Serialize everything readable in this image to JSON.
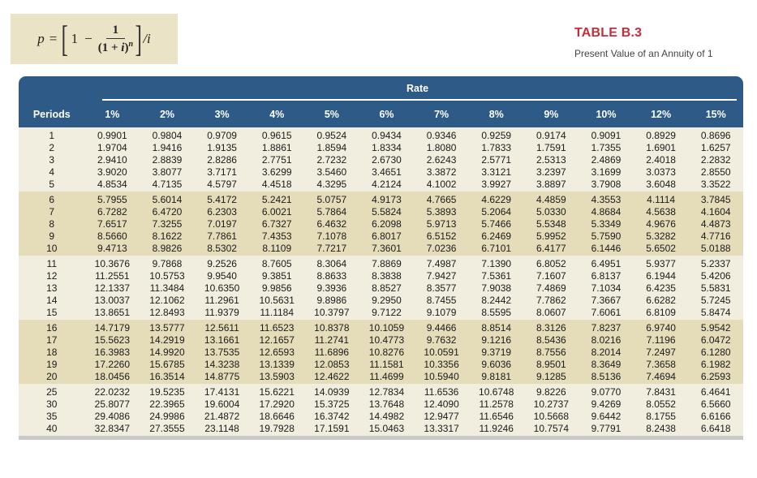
{
  "formula": {
    "lhs": "p",
    "eq": "=",
    "one": "1",
    "minus": "−",
    "numerator": "1",
    "denominator_base": "(1 + ",
    "denominator_var": "i",
    "denominator_close": ")",
    "denominator_exp": "n",
    "divisor": "/i"
  },
  "title": "TABLE B.3",
  "subtitle": "Present Value of an Annuity of 1",
  "header": {
    "group_label": "Rate",
    "periods_label": "Periods",
    "rates": [
      "1%",
      "2%",
      "3%",
      "4%",
      "5%",
      "6%",
      "7%",
      "8%",
      "9%",
      "10%",
      "12%",
      "15%"
    ]
  },
  "bands": [
    {
      "alt": false,
      "rows": [
        {
          "period": "1",
          "values": [
            "0.9901",
            "0.9804",
            "0.9709",
            "0.9615",
            "0.9524",
            "0.9434",
            "0.9346",
            "0.9259",
            "0.9174",
            "0.9091",
            "0.8929",
            "0.8696"
          ]
        },
        {
          "period": "2",
          "values": [
            "1.9704",
            "1.9416",
            "1.9135",
            "1.8861",
            "1.8594",
            "1.8334",
            "1.8080",
            "1.7833",
            "1.7591",
            "1.7355",
            "1.6901",
            "1.6257"
          ]
        },
        {
          "period": "3",
          "values": [
            "2.9410",
            "2.8839",
            "2.8286",
            "2.7751",
            "2.7232",
            "2.6730",
            "2.6243",
            "2.5771",
            "2.5313",
            "2.4869",
            "2.4018",
            "2.2832"
          ]
        },
        {
          "period": "4",
          "values": [
            "3.9020",
            "3.8077",
            "3.7171",
            "3.6299",
            "3.5460",
            "3.4651",
            "3.3872",
            "3.3121",
            "3.2397",
            "3.1699",
            "3.0373",
            "2.8550"
          ]
        },
        {
          "period": "5",
          "values": [
            "4.8534",
            "4.7135",
            "4.5797",
            "4.4518",
            "4.3295",
            "4.2124",
            "4.1002",
            "3.9927",
            "3.8897",
            "3.7908",
            "3.6048",
            "3.3522"
          ]
        }
      ]
    },
    {
      "alt": true,
      "rows": [
        {
          "period": "6",
          "values": [
            "5.7955",
            "5.6014",
            "5.4172",
            "5.2421",
            "5.0757",
            "4.9173",
            "4.7665",
            "4.6229",
            "4.4859",
            "4.3553",
            "4.1114",
            "3.7845"
          ]
        },
        {
          "period": "7",
          "values": [
            "6.7282",
            "6.4720",
            "6.2303",
            "6.0021",
            "5.7864",
            "5.5824",
            "5.3893",
            "5.2064",
            "5.0330",
            "4.8684",
            "4.5638",
            "4.1604"
          ]
        },
        {
          "period": "8",
          "values": [
            "7.6517",
            "7.3255",
            "7.0197",
            "6.7327",
            "6.4632",
            "6.2098",
            "5.9713",
            "5.7466",
            "5.5348",
            "5.3349",
            "4.9676",
            "4.4873"
          ]
        },
        {
          "period": "9",
          "values": [
            "8.5660",
            "8.1622",
            "7.7861",
            "7.4353",
            "7.1078",
            "6.8017",
            "6.5152",
            "6.2469",
            "5.9952",
            "5.7590",
            "5.3282",
            "4.7716"
          ]
        },
        {
          "period": "10",
          "values": [
            "9.4713",
            "8.9826",
            "8.5302",
            "8.1109",
            "7.7217",
            "7.3601",
            "7.0236",
            "6.7101",
            "6.4177",
            "6.1446",
            "5.6502",
            "5.0188"
          ]
        }
      ]
    },
    {
      "alt": false,
      "rows": [
        {
          "period": "11",
          "values": [
            "10.3676",
            "9.7868",
            "9.2526",
            "8.7605",
            "8.3064",
            "7.8869",
            "7.4987",
            "7.1390",
            "6.8052",
            "6.4951",
            "5.9377",
            "5.2337"
          ]
        },
        {
          "period": "12",
          "values": [
            "11.2551",
            "10.5753",
            "9.9540",
            "9.3851",
            "8.8633",
            "8.3838",
            "7.9427",
            "7.5361",
            "7.1607",
            "6.8137",
            "6.1944",
            "5.4206"
          ]
        },
        {
          "period": "13",
          "values": [
            "12.1337",
            "11.3484",
            "10.6350",
            "9.9856",
            "9.3936",
            "8.8527",
            "8.3577",
            "7.9038",
            "7.4869",
            "7.1034",
            "6.4235",
            "5.5831"
          ]
        },
        {
          "period": "14",
          "values": [
            "13.0037",
            "12.1062",
            "11.2961",
            "10.5631",
            "9.8986",
            "9.2950",
            "8.7455",
            "8.2442",
            "7.7862",
            "7.3667",
            "6.6282",
            "5.7245"
          ]
        },
        {
          "period": "15",
          "values": [
            "13.8651",
            "12.8493",
            "11.9379",
            "11.1184",
            "10.3797",
            "9.7122",
            "9.1079",
            "8.5595",
            "8.0607",
            "7.6061",
            "6.8109",
            "5.8474"
          ]
        }
      ]
    },
    {
      "alt": true,
      "rows": [
        {
          "period": "16",
          "values": [
            "14.7179",
            "13.5777",
            "12.5611",
            "11.6523",
            "10.8378",
            "10.1059",
            "9.4466",
            "8.8514",
            "8.3126",
            "7.8237",
            "6.9740",
            "5.9542"
          ]
        },
        {
          "period": "17",
          "values": [
            "15.5623",
            "14.2919",
            "13.1661",
            "12.1657",
            "11.2741",
            "10.4773",
            "9.7632",
            "9.1216",
            "8.5436",
            "8.0216",
            "7.1196",
            "6.0472"
          ]
        },
        {
          "period": "18",
          "values": [
            "16.3983",
            "14.9920",
            "13.7535",
            "12.6593",
            "11.6896",
            "10.8276",
            "10.0591",
            "9.3719",
            "8.7556",
            "8.2014",
            "7.2497",
            "6.1280"
          ]
        },
        {
          "period": "19",
          "values": [
            "17.2260",
            "15.6785",
            "14.3238",
            "13.1339",
            "12.0853",
            "11.1581",
            "10.3356",
            "9.6036",
            "8.9501",
            "8.3649",
            "7.3658",
            "6.1982"
          ]
        },
        {
          "period": "20",
          "values": [
            "18.0456",
            "16.3514",
            "14.8775",
            "13.5903",
            "12.4622",
            "11.4699",
            "10.5940",
            "9.8181",
            "9.1285",
            "8.5136",
            "7.4694",
            "6.2593"
          ]
        }
      ]
    },
    {
      "alt": false,
      "rows": [
        {
          "period": "25",
          "values": [
            "22.0232",
            "19.5235",
            "17.4131",
            "15.6221",
            "14.0939",
            "12.7834",
            "11.6536",
            "10.6748",
            "9.8226",
            "9.0770",
            "7.8431",
            "6.4641"
          ]
        },
        {
          "period": "30",
          "values": [
            "25.8077",
            "22.3965",
            "19.6004",
            "17.2920",
            "15.3725",
            "13.7648",
            "12.4090",
            "11.2578",
            "10.2737",
            "9.4269",
            "8.0552",
            "6.5660"
          ]
        },
        {
          "period": "35",
          "values": [
            "29.4086",
            "24.9986",
            "21.4872",
            "18.6646",
            "16.3742",
            "14.4982",
            "12.9477",
            "11.6546",
            "10.5668",
            "9.6442",
            "8.1755",
            "6.6166"
          ]
        },
        {
          "period": "40",
          "values": [
            "32.8347",
            "27.3555",
            "23.1148",
            "19.7928",
            "17.1591",
            "15.0463",
            "13.3317",
            "11.9246",
            "10.7574",
            "9.7791",
            "8.2438",
            "6.6418"
          ]
        }
      ]
    }
  ],
  "colors": {
    "header_bg": "#2e5a87",
    "title_red": "#c0303a",
    "band_light": "#f2eedf",
    "band_dark": "#e5ddba",
    "formula_bg": "#ebe3c5"
  }
}
